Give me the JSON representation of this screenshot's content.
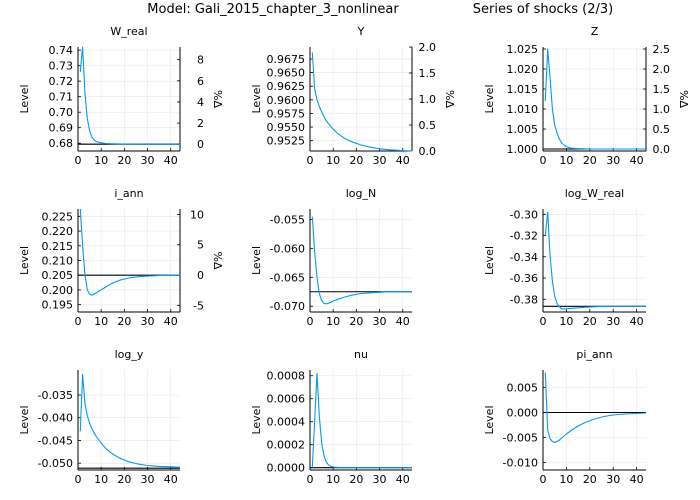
{
  "header": {
    "model_title": "Model: Gali_2015_chapter_3_nonlinear",
    "series_title": "Series of shocks  (2/3)"
  },
  "colors": {
    "line": "#009af9",
    "steady_state": "#000000",
    "grid": "#e6e6e6",
    "axis": "#000000"
  },
  "chart_data": [
    {
      "type": "line",
      "title": "W_real",
      "ylabel": "Level",
      "ylabel_right": "%Δ",
      "xlim": [
        0,
        44
      ],
      "ylim": [
        0.675,
        0.742
      ],
      "xticks": [
        0,
        10,
        20,
        30,
        40
      ],
      "xtick_labels": [
        "0",
        "10",
        "20",
        "30",
        "40"
      ],
      "yticks": [
        0.68,
        0.69,
        0.7,
        0.71,
        0.72,
        0.73,
        0.74
      ],
      "ytick_labels": [
        "0.68",
        "0.69",
        "0.70",
        "0.71",
        "0.72",
        "0.73",
        "0.74"
      ],
      "right_ticks": [
        0,
        2,
        4,
        6,
        8
      ],
      "right_tick_labels": [
        "0",
        "2",
        "4",
        "6",
        "8"
      ],
      "right_lim": [
        -0.64,
        9.2
      ],
      "steady_state": 0.6794,
      "series": [
        {
          "name": "W_real",
          "x": [
            1,
            2,
            3,
            4,
            5,
            6,
            7,
            8,
            10,
            12,
            14,
            17,
            20,
            25,
            30,
            35,
            40,
            44
          ],
          "values": [
            0.726,
            0.742,
            0.712,
            0.696,
            0.688,
            0.684,
            0.682,
            0.681,
            0.6803,
            0.6799,
            0.6797,
            0.6796,
            0.6795,
            0.6795,
            0.6794,
            0.6794,
            0.6794,
            0.6794
          ]
        }
      ]
    },
    {
      "type": "line",
      "title": "Y",
      "ylabel": "Level",
      "ylabel_right": "%Δ",
      "xlim": [
        0,
        44
      ],
      "ylim": [
        0.9506,
        0.9697
      ],
      "xticks": [
        0,
        10,
        20,
        30,
        40
      ],
      "xtick_labels": [
        "0",
        "10",
        "20",
        "30",
        "40"
      ],
      "yticks": [
        0.9525,
        0.955,
        0.9575,
        0.96,
        0.9625,
        0.965,
        0.9675
      ],
      "ytick_labels": [
        "0.9525",
        "0.9550",
        "0.9575",
        "0.9600",
        "0.9625",
        "0.9650",
        "0.9675"
      ],
      "right_ticks": [
        0,
        0.5,
        1.0,
        1.5,
        2.0
      ],
      "right_tick_labels": [
        "0.0",
        "0.5",
        "1.0",
        "1.5",
        "2.0"
      ],
      "right_lim": [
        0,
        2.0
      ],
      "steady_state": 0.9506,
      "series": [
        {
          "name": "Y",
          "x": [
            1,
            2,
            3,
            4,
            5,
            6,
            7,
            8,
            10,
            12,
            15,
            18,
            22,
            26,
            30,
            35,
            40,
            44
          ],
          "values": [
            0.9687,
            0.962,
            0.96,
            0.9588,
            0.9578,
            0.957,
            0.9562,
            0.9556,
            0.9546,
            0.9538,
            0.9529,
            0.9523,
            0.9517,
            0.9513,
            0.951,
            0.9508,
            0.9507,
            0.9506
          ]
        }
      ]
    },
    {
      "type": "line",
      "title": "Z",
      "ylabel": "Level",
      "ylabel_right": "%Δ",
      "xlim": [
        0,
        44
      ],
      "ylim": [
        0.9995,
        1.0255
      ],
      "xticks": [
        0,
        10,
        20,
        30,
        40
      ],
      "xtick_labels": [
        "0",
        "10",
        "20",
        "30",
        "40"
      ],
      "yticks": [
        1.0,
        1.005,
        1.01,
        1.015,
        1.02,
        1.025
      ],
      "ytick_labels": [
        "1.000",
        "1.005",
        "1.010",
        "1.015",
        "1.020",
        "1.025"
      ],
      "right_ticks": [
        0,
        0.5,
        1.0,
        1.5,
        2.0,
        2.5
      ],
      "right_tick_labels": [
        "0.0",
        "0.5",
        "1.0",
        "1.5",
        "2.0",
        "2.5"
      ],
      "right_lim": [
        -0.05,
        2.55
      ],
      "steady_state": 1.0,
      "series": [
        {
          "name": "Z",
          "x": [
            1,
            2,
            3,
            4,
            5,
            6,
            7,
            8,
            9,
            10,
            12,
            15,
            20,
            30,
            44
          ],
          "values": [
            1.012,
            1.025,
            1.018,
            1.01,
            1.006,
            1.004,
            1.0025,
            1.0015,
            1.001,
            1.0006,
            1.0002,
            1.0001,
            1.0,
            1.0,
            1.0
          ]
        }
      ]
    },
    {
      "type": "line",
      "title": "i_ann",
      "ylabel": "Level",
      "ylabel_right": "%Δ",
      "xlim": [
        0,
        44
      ],
      "ylim": [
        0.1925,
        0.2275
      ],
      "xticks": [
        0,
        10,
        20,
        30,
        40
      ],
      "xtick_labels": [
        "0",
        "10",
        "20",
        "30",
        "40"
      ],
      "yticks": [
        0.195,
        0.2,
        0.205,
        0.21,
        0.215,
        0.22,
        0.225
      ],
      "ytick_labels": [
        "0.195",
        "0.200",
        "0.205",
        "0.210",
        "0.215",
        "0.220",
        "0.225"
      ],
      "right_ticks": [
        -5,
        0,
        5,
        10
      ],
      "right_tick_labels": [
        "-5",
        "0",
        "5",
        "10"
      ],
      "right_lim": [
        -6.1,
        10.9
      ],
      "steady_state": 0.205,
      "series": [
        {
          "name": "i_ann",
          "x": [
            1,
            2,
            3,
            4,
            5,
            6,
            7,
            8,
            10,
            12,
            15,
            18,
            22,
            26,
            30,
            35,
            40,
            44
          ],
          "values": [
            0.2275,
            0.215,
            0.205,
            0.2,
            0.1985,
            0.1982,
            0.1986,
            0.1991,
            0.2,
            0.201,
            0.2024,
            0.2033,
            0.2041,
            0.2045,
            0.2047,
            0.2049,
            0.205,
            0.205
          ]
        }
      ]
    },
    {
      "type": "line",
      "title": "log_N",
      "ylabel": "Level",
      "xlim": [
        0,
        44
      ],
      "ylim": [
        -0.071,
        -0.0532
      ],
      "xticks": [
        0,
        10,
        20,
        30,
        40
      ],
      "xtick_labels": [
        "0",
        "10",
        "20",
        "30",
        "40"
      ],
      "yticks": [
        -0.07,
        -0.065,
        -0.06,
        -0.055
      ],
      "ytick_labels": [
        "-0.070",
        "-0.065",
        "-0.060",
        "-0.055"
      ],
      "steady_state": -0.0675,
      "series": [
        {
          "name": "log_N",
          "x": [
            1,
            2,
            3,
            4,
            5,
            6,
            7,
            8,
            9,
            10,
            12,
            15,
            18,
            22,
            26,
            30,
            35,
            40,
            44
          ],
          "values": [
            -0.0545,
            -0.0605,
            -0.065,
            -0.0678,
            -0.069,
            -0.0695,
            -0.0696,
            -0.0695,
            -0.0693,
            -0.0691,
            -0.0688,
            -0.0684,
            -0.0681,
            -0.0678,
            -0.0677,
            -0.0676,
            -0.0675,
            -0.0675,
            -0.0675
          ]
        }
      ]
    },
    {
      "type": "line",
      "title": "log_W_real",
      "ylabel": "Level",
      "xlim": [
        0,
        44
      ],
      "ylim": [
        -0.392,
        -0.295
      ],
      "xticks": [
        0,
        10,
        20,
        30,
        40
      ],
      "xtick_labels": [
        "0",
        "10",
        "20",
        "30",
        "40"
      ],
      "yticks": [
        -0.38,
        -0.36,
        -0.34,
        -0.32,
        -0.3
      ],
      "ytick_labels": [
        "-0.38",
        "-0.36",
        "-0.34",
        "-0.32",
        "-0.30"
      ],
      "steady_state": -0.3866,
      "series": [
        {
          "name": "log_W_real",
          "x": [
            1,
            2,
            3,
            4,
            5,
            6,
            7,
            8,
            10,
            12,
            15,
            20,
            25,
            30,
            35,
            40,
            44
          ],
          "values": [
            -0.32,
            -0.298,
            -0.338,
            -0.363,
            -0.377,
            -0.384,
            -0.387,
            -0.389,
            -0.389,
            -0.3885,
            -0.388,
            -0.3872,
            -0.3868,
            -0.3867,
            -0.3866,
            -0.3866,
            -0.3866
          ]
        }
      ]
    },
    {
      "type": "line",
      "title": "log_y",
      "ylabel": "Level",
      "xlim": [
        0,
        44
      ],
      "ylim": [
        -0.0515,
        -0.0295
      ],
      "xticks": [
        0,
        10,
        20,
        30,
        40
      ],
      "xtick_labels": [
        "0",
        "10",
        "20",
        "30",
        "40"
      ],
      "yticks": [
        -0.05,
        -0.045,
        -0.04,
        -0.035
      ],
      "ytick_labels": [
        "-0.050",
        "-0.045",
        "-0.040",
        "-0.035"
      ],
      "steady_state": -0.0511,
      "series": [
        {
          "name": "log_y",
          "x": [
            1,
            2,
            3,
            4,
            5,
            6,
            7,
            8,
            10,
            12,
            15,
            18,
            22,
            26,
            30,
            35,
            40,
            44
          ],
          "values": [
            -0.043,
            -0.0305,
            -0.037,
            -0.0395,
            -0.0412,
            -0.0424,
            -0.0434,
            -0.0442,
            -0.0456,
            -0.0468,
            -0.048,
            -0.0489,
            -0.0497,
            -0.0502,
            -0.0505,
            -0.0507,
            -0.0508,
            -0.0509
          ]
        }
      ]
    },
    {
      "type": "line",
      "title": "nu",
      "ylabel": "Level",
      "xlim": [
        0,
        44
      ],
      "ylim": [
        -2e-05,
        0.00085
      ],
      "xticks": [
        0,
        10,
        20,
        30,
        40
      ],
      "xtick_labels": [
        "0",
        "10",
        "20",
        "30",
        "40"
      ],
      "yticks": [
        0.0,
        0.0002,
        0.0004,
        0.0006,
        0.0008
      ],
      "ytick_labels": [
        "0.0000",
        "0.0002",
        "0.0004",
        "0.0006",
        "0.0008"
      ],
      "steady_state": 0.0,
      "series": [
        {
          "name": "nu",
          "x": [
            1,
            2,
            3,
            4,
            5,
            6,
            7,
            8,
            9,
            10,
            12,
            15,
            20,
            30,
            44
          ],
          "values": [
            0.0,
            0.0004,
            0.00082,
            0.00045,
            0.00022,
            0.00011,
            5e-05,
            2.5e-05,
            1.2e-05,
            6e-06,
            2e-06,
            0.0,
            0.0,
            0.0,
            0.0
          ]
        }
      ]
    },
    {
      "type": "line",
      "title": "pi_ann",
      "ylabel": "Level",
      "xlim": [
        0,
        44
      ],
      "ylim": [
        -0.0115,
        0.0085
      ],
      "xticks": [
        0,
        10,
        20,
        30,
        40
      ],
      "xtick_labels": [
        "0",
        "10",
        "20",
        "30",
        "40"
      ],
      "yticks": [
        -0.01,
        -0.005,
        0.0,
        0.005
      ],
      "ytick_labels": [
        "-0.010",
        "-0.005",
        "0.000",
        "0.005"
      ],
      "steady_state": 0.0,
      "series": [
        {
          "name": "pi_ann",
          "x": [
            1,
            2,
            3,
            4,
            5,
            6,
            7,
            8,
            10,
            12,
            15,
            18,
            22,
            26,
            30,
            35,
            40,
            44
          ],
          "values": [
            0.008,
            -0.0035,
            -0.0052,
            -0.0058,
            -0.006,
            -0.0058,
            -0.0055,
            -0.0051,
            -0.0043,
            -0.0036,
            -0.0027,
            -0.002,
            -0.0013,
            -0.0008,
            -0.0005,
            -0.0003,
            -0.0002,
            -0.0001
          ]
        }
      ]
    }
  ]
}
